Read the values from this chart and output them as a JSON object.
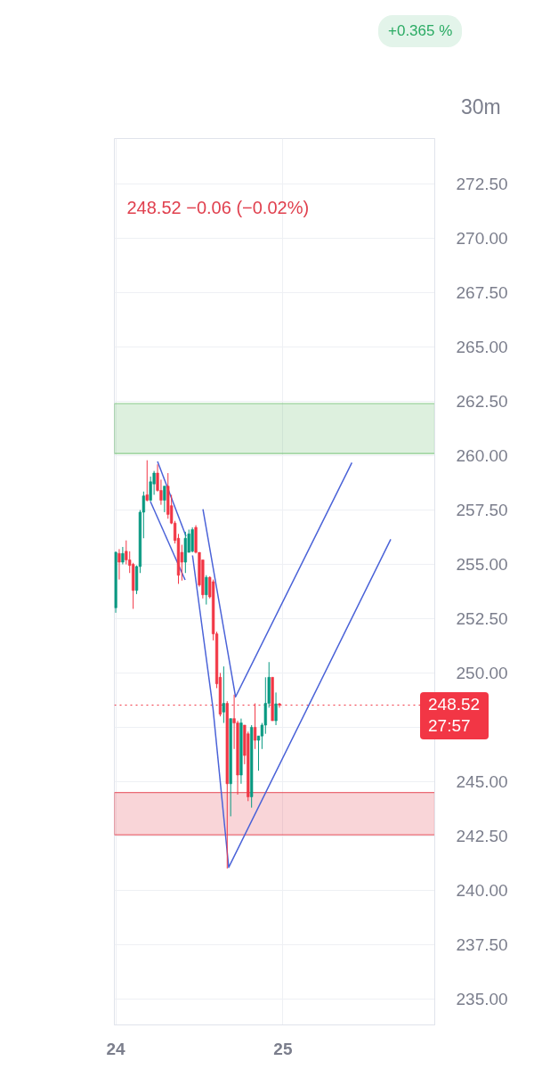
{
  "chart_data": {
    "type": "candlestick",
    "x": [
      24,
      24.0208,
      24.0417,
      24.0625,
      24.0833,
      24.1042,
      24.125,
      24.1458,
      24.1667,
      24.1875,
      24.2083,
      24.2292,
      24.25,
      24.2708,
      24.2917,
      24.3125,
      24.3333,
      24.3542,
      24.375,
      24.3958,
      24.4167,
      24.4375,
      24.4583,
      24.4792,
      24.5,
      24.5208,
      24.5417,
      24.5625,
      24.5833,
      24.6042,
      24.625,
      24.6458,
      24.6667,
      24.6875,
      24.7083,
      24.7292,
      24.75,
      24.7708,
      24.7917,
      24.8125,
      24.8333,
      24.8542,
      24.875,
      24.8958,
      24.9167,
      24.9375,
      24.9583,
      24.9792
    ],
    "ohlc": [
      [
        253.0,
        255.6,
        252.77,
        255.55
      ],
      [
        255.5,
        255.7,
        254.3,
        255.1
      ],
      [
        255.1,
        255.8,
        255.0,
        255.5
      ],
      [
        255.6,
        256.1,
        255.0,
        255.2
      ],
      [
        255.2,
        255.6,
        254.6,
        254.95
      ],
      [
        255.0,
        255.07,
        252.95,
        253.8
      ],
      [
        253.8,
        254.95,
        253.63,
        254.9
      ],
      [
        254.9,
        257.5,
        254.6,
        257.4
      ],
      [
        257.4,
        258.35,
        256.2,
        258.15
      ],
      [
        258.2,
        259.79,
        257.9,
        257.95
      ],
      [
        257.95,
        259.04,
        257.9,
        258.8
      ],
      [
        258.7,
        259.3,
        258.2,
        259.2
      ],
      [
        259.2,
        259.6,
        258.35,
        258.4
      ],
      [
        258.4,
        258.9,
        257.74,
        257.95
      ],
      [
        257.95,
        258.6,
        257.4,
        258.6
      ],
      [
        258.6,
        259.2,
        257.1,
        257.3
      ],
      [
        257.7,
        258.2,
        256.85,
        256.9
      ],
      [
        256.9,
        257.0,
        255.96,
        256.1
      ],
      [
        256.2,
        256.4,
        254.1,
        254.5
      ],
      [
        255.55,
        255.9,
        254.25,
        255.1
      ],
      [
        255.1,
        256.5,
        254.6,
        256.2
      ],
      [
        255.55,
        256.6,
        255.55,
        256.4
      ],
      [
        255.6,
        256.7,
        255.55,
        256.6
      ],
      [
        256.7,
        256.8,
        255.5,
        255.55
      ],
      [
        255.55,
        255.55,
        253.97,
        254.05
      ],
      [
        255.2,
        255.2,
        253.43,
        253.6
      ],
      [
        253.6,
        254.5,
        253.15,
        254.4
      ],
      [
        254.4,
        254.45,
        253.43,
        253.5
      ],
      [
        254.2,
        254.3,
        251.5,
        251.8
      ],
      [
        251.8,
        251.9,
        249.3,
        249.5
      ],
      [
        249.8,
        250.0,
        248.0,
        248.1
      ],
      [
        248.2,
        250.3,
        247.7,
        248.6
      ],
      [
        248.6,
        248.7,
        241.0,
        244.9
      ],
      [
        244.9,
        247.9,
        243.4,
        247.9
      ],
      [
        247.9,
        249.0,
        246.5,
        247.7
      ],
      [
        247.7,
        247.8,
        244.4,
        245.3
      ],
      [
        245.3,
        247.9,
        244.9,
        247.7
      ],
      [
        247.6,
        247.6,
        245.8,
        246.2
      ],
      [
        247.2,
        247.3,
        244.1,
        244.3
      ],
      [
        244.3,
        247.6,
        243.8,
        247.5
      ],
      [
        247.5,
        248.6,
        246.5,
        246.9
      ],
      [
        246.9,
        247.1,
        245.5,
        247.1
      ],
      [
        247.1,
        247.7,
        246.5,
        247.6
      ],
      [
        247.6,
        249.8,
        247.2,
        248.6
      ],
      [
        248.6,
        250.5,
        248.4,
        249.8
      ],
      [
        249.8,
        249.8,
        247.8,
        247.8
      ],
      [
        247.8,
        249.1,
        247.6,
        248.58
      ],
      [
        248.58,
        248.62,
        248.4,
        248.52
      ]
    ],
    "colors": [
      "#089981",
      "#f23645",
      "#089981",
      "#f23645",
      "#f23645",
      "#f23645",
      "#089981",
      "#089981",
      "#089981",
      "#f23645",
      "#089981",
      "#089981",
      "#f23645",
      "#f23645",
      "#089981",
      "#f23645",
      "#f23645",
      "#f23645",
      "#f23645",
      "#f23645",
      "#089981",
      "#089981",
      "#089981",
      "#f23645",
      "#f23645",
      "#f23645",
      "#089981",
      "#f23645",
      "#f23645",
      "#f23645",
      "#f23645",
      "#089981",
      "#f23645",
      "#089981",
      "#f23645",
      "#f23645",
      "#089981",
      "#f23645",
      "#f23645",
      "#089981",
      "#f23645",
      "#089981",
      "#089981",
      "#089981",
      "#089981",
      "#f23645",
      "#089981",
      "#f23645"
    ],
    "series": [
      {
        "type": "line",
        "color": "#4b63d8",
        "x": [
          24.25,
          24.4204
        ],
        "values": [
          259.74,
          256.29
        ]
      },
      {
        "type": "line",
        "color": "#4b63d8",
        "x": [
          24.2075,
          24.415
        ],
        "values": [
          257.89,
          254.28
        ]
      },
      {
        "type": "line",
        "color": "#4b63d8",
        "x": [
          24.5217,
          24.7167,
          25.4125
        ],
        "values": [
          257.54,
          248.9,
          259.68
        ]
      },
      {
        "type": "line",
        "color": "#4b63d8",
        "x": [
          24.4592,
          24.5817,
          24.6758,
          25.645
        ],
        "values": [
          255.41,
          248.37,
          241.05,
          256.15
        ]
      }
    ],
    "xlim": [
      23.9917,
      25.9083
    ],
    "ylim": [
      233.8,
      274.6
    ],
    "xticks": [
      24,
      25
    ],
    "yticks": [
      {
        "value": 235,
        "label": "235.00"
      },
      {
        "value": 237.5,
        "label": "237.50"
      },
      {
        "value": 240,
        "label": "240.00"
      },
      {
        "value": 242.5,
        "label": "242.50"
      },
      {
        "value": 245,
        "label": "245.00"
      },
      {
        "value": 247.5,
        "label": null
      },
      {
        "value": 250,
        "label": "250.00"
      },
      {
        "value": 252.5,
        "label": "252.50"
      },
      {
        "value": 255,
        "label": "255.00"
      },
      {
        "value": 257.5,
        "label": "257.50"
      },
      {
        "value": 260,
        "label": "260.00"
      },
      {
        "value": 262.5,
        "label": "262.50"
      },
      {
        "value": 265,
        "label": "265.00"
      },
      {
        "value": 267.5,
        "label": "267.50"
      },
      {
        "value": 270,
        "label": "270.00"
      },
      {
        "value": 272.5,
        "label": "272.50"
      }
    ],
    "grid": true,
    "bands": [
      {
        "axis": "y",
        "from": 260.1,
        "to": 262.4,
        "color": "#66bb6a"
      },
      {
        "axis": "y",
        "from": 242.55,
        "to": 244.5,
        "color": "#e5404f"
      }
    ],
    "ref_lines": [
      {
        "axis": "y",
        "value": 248.52,
        "label": "248.52\n27:57",
        "color": "#f23645",
        "line_style": "dotted"
      }
    ],
    "annotations": [
      "248.52  −0.06 (−0.02%)",
      "+0.365 %",
      "30m"
    ]
  }
}
